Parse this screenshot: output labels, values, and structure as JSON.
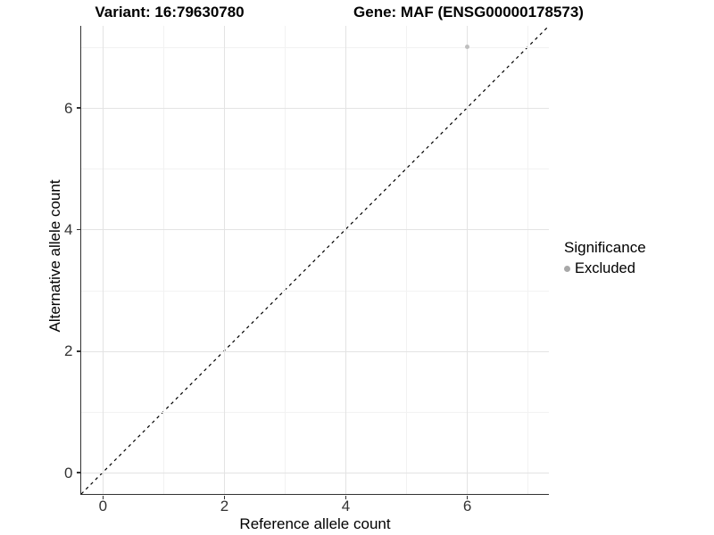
{
  "titles": {
    "variant": "Variant: 16:79630780",
    "gene": "Gene: MAF (ENSG00000178573)"
  },
  "axes": {
    "x_label": "Reference allele count",
    "y_label": "Alternative allele count"
  },
  "legend": {
    "title": "Significance",
    "items": [
      {
        "label": "Excluded",
        "color": "#a8a8a8"
      }
    ]
  },
  "chart_data": {
    "type": "scatter",
    "title": "Variant: 16:79630780    Gene: MAF (ENSG00000178573)",
    "xlabel": "Reference allele count",
    "ylabel": "Alternative allele count",
    "xlim": [
      -0.35,
      7.35
    ],
    "ylim": [
      -0.35,
      7.35
    ],
    "x_major_ticks": [
      0,
      2,
      4,
      6
    ],
    "y_major_ticks": [
      0,
      2,
      4,
      6
    ],
    "x_minor_gridlines": [
      1,
      3,
      5,
      7
    ],
    "y_minor_gridlines": [
      1,
      3,
      5,
      7
    ],
    "grid": true,
    "legend_position": "right",
    "series": [
      {
        "name": "Excluded",
        "color": "#bfbfbf",
        "points": [
          {
            "x": 6,
            "y": 7
          }
        ]
      }
    ],
    "reference_line": {
      "description": "identity line y = x",
      "slope": 1,
      "intercept": 0,
      "line_style": "dashed",
      "color": "#000000"
    }
  }
}
